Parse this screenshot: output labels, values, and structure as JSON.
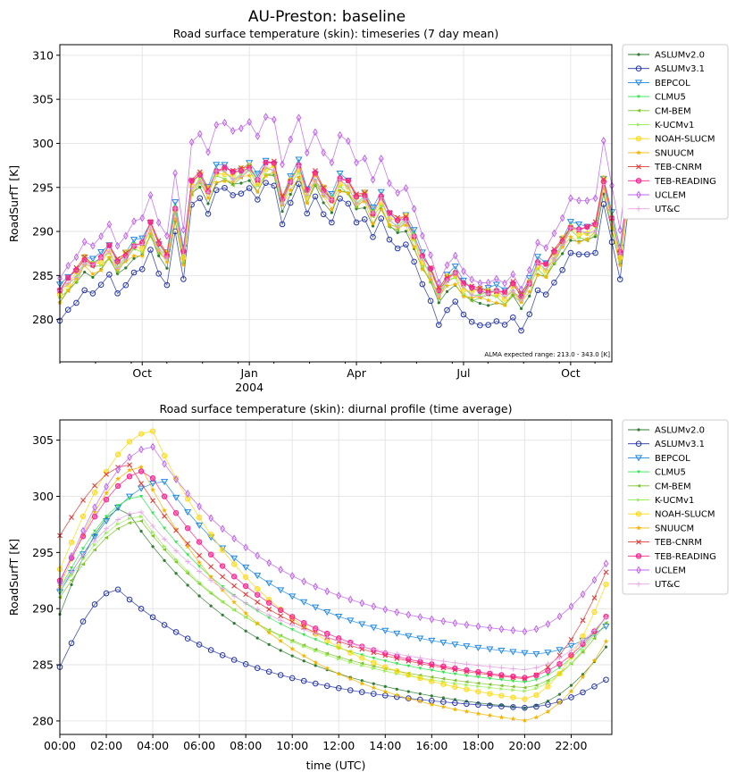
{
  "figure": {
    "title": "AU-Preston: baseline"
  },
  "colors": {
    "ASLUMv2.0": "#2e7d32",
    "ASLUMv3.1": "#2233aa",
    "BEPCOL": "#1e88e5",
    "CLMU5": "#2ee64a",
    "CM-BEM": "#7cc42a",
    "K-UCMv1": "#9af05a",
    "NOAH-SLUCM": "#ffd700",
    "SNUUCM": "#f4b400",
    "TEB-CNRM": "#e53935",
    "TEB-READING": "#ff1f8f",
    "UCLEM": "#c060f0",
    "UT&C": "#e4a0e4"
  },
  "chart_data": [
    {
      "type": "line",
      "title": "Road surface temperature (skin): timeseries (7 day mean)",
      "xlabel": "",
      "ylabel": "RoadSurfT [K]",
      "ylim": [
        275.2,
        311.2
      ],
      "yticks": [
        280,
        285,
        290,
        295,
        300,
        305,
        310
      ],
      "x_ticks": [
        {
          "label": "Oct",
          "week": 10
        },
        {
          "label": "Jan",
          "sub": "2004",
          "week": 23
        },
        {
          "label": "Apr",
          "week": 36
        },
        {
          "label": "Jul",
          "week": 49
        },
        {
          "label": "Oct",
          "week": 62
        }
      ],
      "x_range_weeks": [
        0,
        67
      ],
      "note": "ALMA expected range: 213.0 - 343.0 [K]",
      "grid": true,
      "legend_position": "outside-right",
      "x_unit": "weeks (Aug 2003 - Nov 2004)",
      "base_series": [
        283.0,
        284.0,
        285.0,
        286.5,
        286.0,
        286.5,
        287.5,
        286.0,
        287.0,
        288.0,
        288.0,
        290.0,
        288.0,
        287.0,
        292.0,
        287.0,
        294.5,
        295.5,
        294.0,
        296.0,
        296.0,
        295.5,
        296.0,
        296.5,
        295.0,
        296.5,
        296.5,
        293.0,
        295.0,
        296.5,
        293.5,
        295.5,
        294.0,
        293.0,
        295.0,
        294.5,
        293.0,
        293.5,
        291.5,
        293.0,
        291.0,
        290.5,
        291.0,
        289.0,
        286.5,
        285.0,
        283.0,
        284.5,
        285.0,
        283.5,
        283.0,
        283.0,
        283.0,
        283.0,
        282.5,
        283.5,
        282.5,
        284.0,
        286.0,
        285.5,
        287.0,
        288.5,
        290.0,
        289.5,
        289.5,
        290.0,
        295.0,
        291.0,
        287.0,
        294.0,
        294.5,
        300.5
      ],
      "series": [
        {
          "name": "ASLUMv2.0",
          "offset": -0.8
        },
        {
          "name": "ASLUMv3.1",
          "offset": -2.6
        },
        {
          "name": "BEPCOL",
          "offset": 0.9
        },
        {
          "name": "CLMU5",
          "offset": 0.3
        },
        {
          "name": "CM-BEM",
          "offset": -0.3
        },
        {
          "name": "K-UCMv1",
          "offset": -0.1
        },
        {
          "name": "NOAH-SLUCM",
          "offset": 0.4
        },
        {
          "name": "SNUUCM",
          "offset": -0.5
        },
        {
          "name": "TEB-CNRM",
          "offset": 0.7
        },
        {
          "name": "TEB-READING",
          "offset": 0.6
        },
        {
          "name": "UCLEM",
          "offset": 3.2
        },
        {
          "name": "UT&C",
          "offset": 0.2
        }
      ]
    },
    {
      "type": "line",
      "title": "Road surface temperature (skin): diurnal profile (time average)",
      "xlabel": "time (UTC)",
      "ylabel": "RoadSurfT [K]",
      "ylim": [
        278.8,
        306.8
      ],
      "yticks": [
        280,
        285,
        290,
        295,
        300,
        305
      ],
      "xticks": [
        "00:00",
        "02:00",
        "04:00",
        "06:00",
        "08:00",
        "10:00",
        "12:00",
        "14:00",
        "16:00",
        "18:00",
        "20:00",
        "22:00"
      ],
      "x_range_hours": [
        0,
        23.75
      ],
      "grid": true,
      "legend_position": "outside-right",
      "series": [
        {
          "name": "ASLUMv2.0",
          "y0": 289.5,
          "peak": 299.0,
          "peak_h": 2.8,
          "min": 281.2,
          "min_h": 20.0,
          "end": 287.3
        },
        {
          "name": "ASLUMv3.1",
          "y0": 284.8,
          "peak": 291.7,
          "peak_h": 2.5,
          "min": 281.2,
          "min_h": 20.0,
          "end": 284.0
        },
        {
          "name": "BEPCOL",
          "y0": 291.5,
          "peak": 301.3,
          "peak_h": 4.5,
          "min": 286.0,
          "min_h": 20.5,
          "end": 288.8
        },
        {
          "name": "CLMU5",
          "y0": 291.8,
          "peak": 300.0,
          "peak_h": 3.5,
          "min": 283.5,
          "min_h": 20.0,
          "end": 290.0
        },
        {
          "name": "CM-BEM",
          "y0": 291.0,
          "peak": 297.8,
          "peak_h": 3.5,
          "min": 283.0,
          "min_h": 20.0,
          "end": 289.5
        },
        {
          "name": "K-UCMv1",
          "y0": 291.5,
          "peak": 298.2,
          "peak_h": 3.5,
          "min": 282.7,
          "min_h": 20.0,
          "end": 290.2
        },
        {
          "name": "NOAH-SLUCM",
          "y0": 293.5,
          "peak": 305.8,
          "peak_h": 4.0,
          "min": 282.0,
          "min_h": 20.0,
          "end": 293.5
        },
        {
          "name": "SNUUCM",
          "y0": 292.0,
          "peak": 302.6,
          "peak_h": 3.5,
          "min": 280.1,
          "min_h": 20.0,
          "end": 288.0
        },
        {
          "name": "TEB-CNRM",
          "y0": 296.5,
          "peak": 302.8,
          "peak_h": 3.0,
          "min": 283.8,
          "min_h": 20.0,
          "end": 294.5
        },
        {
          "name": "TEB-READING",
          "y0": 292.5,
          "peak": 302.3,
          "peak_h": 3.8,
          "min": 283.9,
          "min_h": 20.0,
          "end": 290.0
        },
        {
          "name": "UCLEM",
          "y0": 292.3,
          "peak": 304.4,
          "peak_h": 4.0,
          "min": 288.0,
          "min_h": 20.0,
          "end": 294.8
        },
        {
          "name": "UT&C",
          "y0": 291.8,
          "peak": 298.6,
          "peak_h": 3.5,
          "min": 284.6,
          "min_h": 20.0,
          "end": 289.8
        }
      ]
    }
  ]
}
